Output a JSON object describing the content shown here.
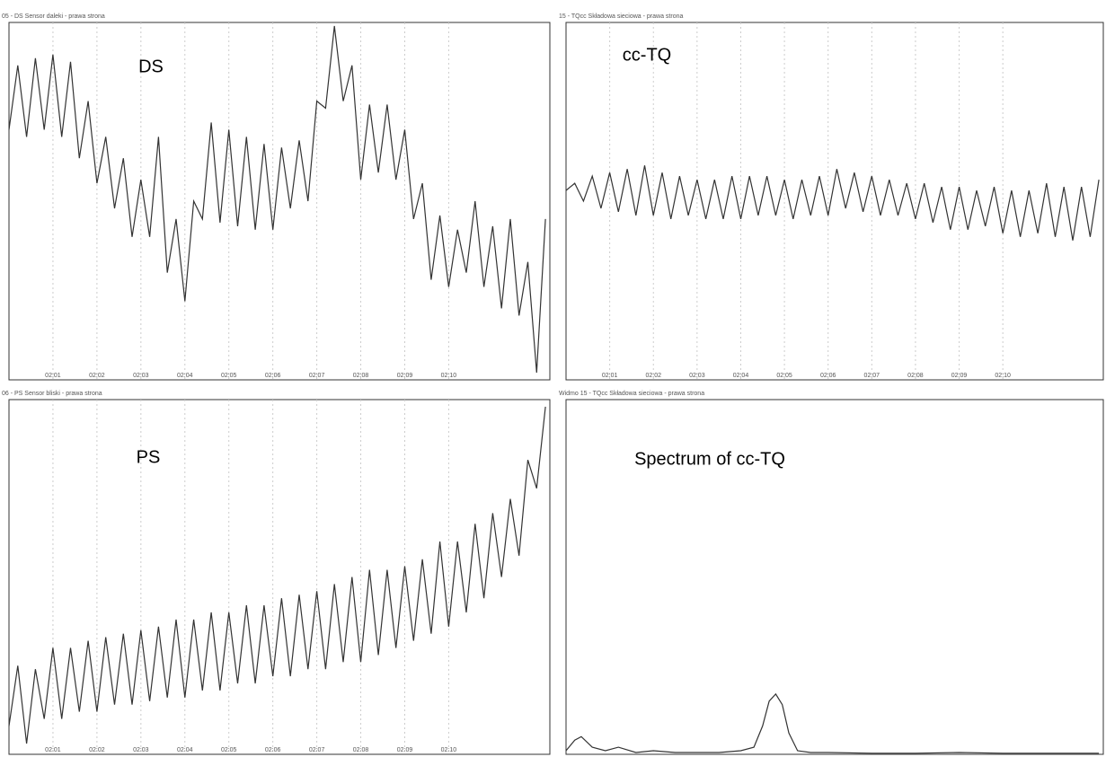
{
  "chart_data": [
    {
      "type": "line",
      "title": "05 - DS Sensor daleki - prawa strona",
      "annotation": "DS",
      "color": "#333333",
      "grid": true,
      "xlim": [
        0,
        12.3
      ],
      "ylim": [
        0,
        100
      ],
      "xticks": [
        {
          "value": 1,
          "label": "02:01"
        },
        {
          "value": 2,
          "label": "02:02"
        },
        {
          "value": 3,
          "label": "02:03"
        },
        {
          "value": 4,
          "label": "02:04"
        },
        {
          "value": 5,
          "label": "02:05"
        },
        {
          "value": 6,
          "label": "02:06"
        },
        {
          "value": 7,
          "label": "02:07"
        },
        {
          "value": 8,
          "label": "02:08"
        },
        {
          "value": 9,
          "label": "02:09"
        },
        {
          "value": 10,
          "label": "02:10"
        }
      ],
      "x": [
        0,
        0.2,
        0.4,
        0.6,
        0.8,
        1,
        1.2,
        1.4,
        1.6,
        1.8,
        2,
        2.2,
        2.4,
        2.6,
        2.8,
        3,
        3.2,
        3.4,
        3.6,
        3.8,
        4,
        4.2,
        4.4,
        4.6,
        4.8,
        5,
        5.2,
        5.4,
        5.6,
        5.8,
        6,
        6.2,
        6.4,
        6.6,
        6.8,
        7,
        7.2,
        7.4,
        7.6,
        7.8,
        8,
        8.2,
        8.4,
        8.6,
        8.8,
        9,
        9.2,
        9.4,
        9.6,
        9.8,
        10,
        10.2,
        10.4,
        10.6,
        10.8,
        11,
        11.2,
        11.4,
        11.6,
        11.8,
        12,
        12.2
      ],
      "values": [
        70,
        88,
        68,
        90,
        70,
        91,
        68,
        89,
        62,
        78,
        55,
        68,
        48,
        62,
        40,
        56,
        40,
        68,
        30,
        45,
        22,
        50,
        45,
        72,
        44,
        70,
        43,
        68,
        42,
        66,
        42,
        65,
        48,
        67,
        50,
        78,
        76,
        99,
        78,
        88,
        56,
        77,
        58,
        77,
        56,
        70,
        45,
        55,
        28,
        46,
        26,
        42,
        30,
        50,
        26,
        43,
        20,
        45,
        18,
        33,
        2,
        45
      ]
    },
    {
      "type": "line",
      "title": "15 - TQcc Składowa sieciowa - prawa strona",
      "annotation": "cc-TQ",
      "color": "#333333",
      "grid": true,
      "xlim": [
        0,
        12.3
      ],
      "ylim": [
        0,
        100
      ],
      "xticks": [
        {
          "value": 1,
          "label": "02:01"
        },
        {
          "value": 2,
          "label": "02:02"
        },
        {
          "value": 3,
          "label": "02:03"
        },
        {
          "value": 4,
          "label": "02:04"
        },
        {
          "value": 5,
          "label": "02:05"
        },
        {
          "value": 6,
          "label": "02:06"
        },
        {
          "value": 7,
          "label": "02:07"
        },
        {
          "value": 8,
          "label": "02:08"
        },
        {
          "value": 9,
          "label": "02:09"
        },
        {
          "value": 10,
          "label": "02:10"
        }
      ],
      "x": [
        0,
        0.2,
        0.4,
        0.6,
        0.8,
        1,
        1.2,
        1.4,
        1.6,
        1.8,
        2,
        2.2,
        2.4,
        2.6,
        2.8,
        3,
        3.2,
        3.4,
        3.6,
        3.8,
        4,
        4.2,
        4.4,
        4.6,
        4.8,
        5,
        5.2,
        5.4,
        5.6,
        5.8,
        6,
        6.2,
        6.4,
        6.6,
        6.8,
        7,
        7.2,
        7.4,
        7.6,
        7.8,
        8,
        8.2,
        8.4,
        8.6,
        8.8,
        9,
        9.2,
        9.4,
        9.6,
        9.8,
        10,
        10.2,
        10.4,
        10.6,
        10.8,
        11,
        11.2,
        11.4,
        11.6,
        11.8,
        12,
        12.2
      ],
      "values": [
        53,
        55,
        50,
        57,
        48,
        58,
        47,
        59,
        46,
        60,
        46,
        58,
        45,
        57,
        46,
        56,
        45,
        56,
        45,
        57,
        45,
        57,
        46,
        57,
        46,
        56,
        45,
        56,
        46,
        57,
        46,
        59,
        48,
        58,
        47,
        57,
        46,
        56,
        46,
        55,
        45,
        55,
        44,
        54,
        42,
        54,
        42,
        53,
        43,
        54,
        41,
        53,
        40,
        53,
        41,
        55,
        40,
        54,
        39,
        54,
        40,
        56
      ]
    },
    {
      "type": "line",
      "title": "06 - PS Sensor bliski - prawa strona",
      "annotation": "PS",
      "color": "#333333",
      "grid": true,
      "xlim": [
        0,
        12.3
      ],
      "ylim": [
        0,
        100
      ],
      "xticks": [
        {
          "value": 1,
          "label": "02:01"
        },
        {
          "value": 2,
          "label": "02:02"
        },
        {
          "value": 3,
          "label": "02:03"
        },
        {
          "value": 4,
          "label": "02:04"
        },
        {
          "value": 5,
          "label": "02:05"
        },
        {
          "value": 6,
          "label": "02:06"
        },
        {
          "value": 7,
          "label": "02:07"
        },
        {
          "value": 8,
          "label": "02:08"
        },
        {
          "value": 9,
          "label": "02:09"
        },
        {
          "value": 10,
          "label": "02:10"
        }
      ],
      "x": [
        0,
        0.2,
        0.4,
        0.6,
        0.8,
        1,
        1.2,
        1.4,
        1.6,
        1.8,
        2,
        2.2,
        2.4,
        2.6,
        2.8,
        3,
        3.2,
        3.4,
        3.6,
        3.8,
        4,
        4.2,
        4.4,
        4.6,
        4.8,
        5,
        5.2,
        5.4,
        5.6,
        5.8,
        6,
        6.2,
        6.4,
        6.6,
        6.8,
        7,
        7.2,
        7.4,
        7.6,
        7.8,
        8,
        8.2,
        8.4,
        8.6,
        8.8,
        9,
        9.2,
        9.4,
        9.6,
        9.8,
        10,
        10.2,
        10.4,
        10.6,
        10.8,
        11,
        11.2,
        11.4,
        11.6,
        11.8,
        12,
        12.2
      ],
      "values": [
        8,
        25,
        3,
        24,
        10,
        30,
        10,
        30,
        12,
        32,
        12,
        33,
        14,
        34,
        14,
        35,
        15,
        36,
        16,
        38,
        16,
        38,
        18,
        40,
        18,
        40,
        20,
        42,
        20,
        42,
        22,
        44,
        22,
        45,
        24,
        46,
        24,
        48,
        26,
        50,
        26,
        52,
        28,
        52,
        30,
        53,
        32,
        55,
        34,
        60,
        36,
        60,
        40,
        65,
        44,
        68,
        50,
        72,
        56,
        83,
        75,
        98
      ]
    },
    {
      "type": "line",
      "title": "Widmo 15 - TQcc Składowa sieciowa - prawa strona",
      "annotation": "Spectrum of cc-TQ",
      "color": "#333333",
      "grid": true,
      "xlim": [
        0,
        12.3
      ],
      "ylim": [
        0,
        100
      ],
      "x": [
        0,
        0.2,
        0.35,
        0.6,
        0.9,
        1.2,
        1.6,
        2,
        2.5,
        3,
        3.5,
        4,
        4.3,
        4.5,
        4.65,
        4.8,
        4.95,
        5.1,
        5.3,
        5.6,
        6,
        7,
        8,
        9,
        10,
        11,
        12.2
      ],
      "values": [
        1,
        4,
        5,
        2,
        1,
        2,
        0.5,
        1,
        0.5,
        0.5,
        0.5,
        1,
        2,
        8,
        15,
        17,
        14,
        6,
        1,
        0.5,
        0.5,
        0.3,
        0.3,
        0.5,
        0.3,
        0.3,
        0.3
      ]
    }
  ]
}
